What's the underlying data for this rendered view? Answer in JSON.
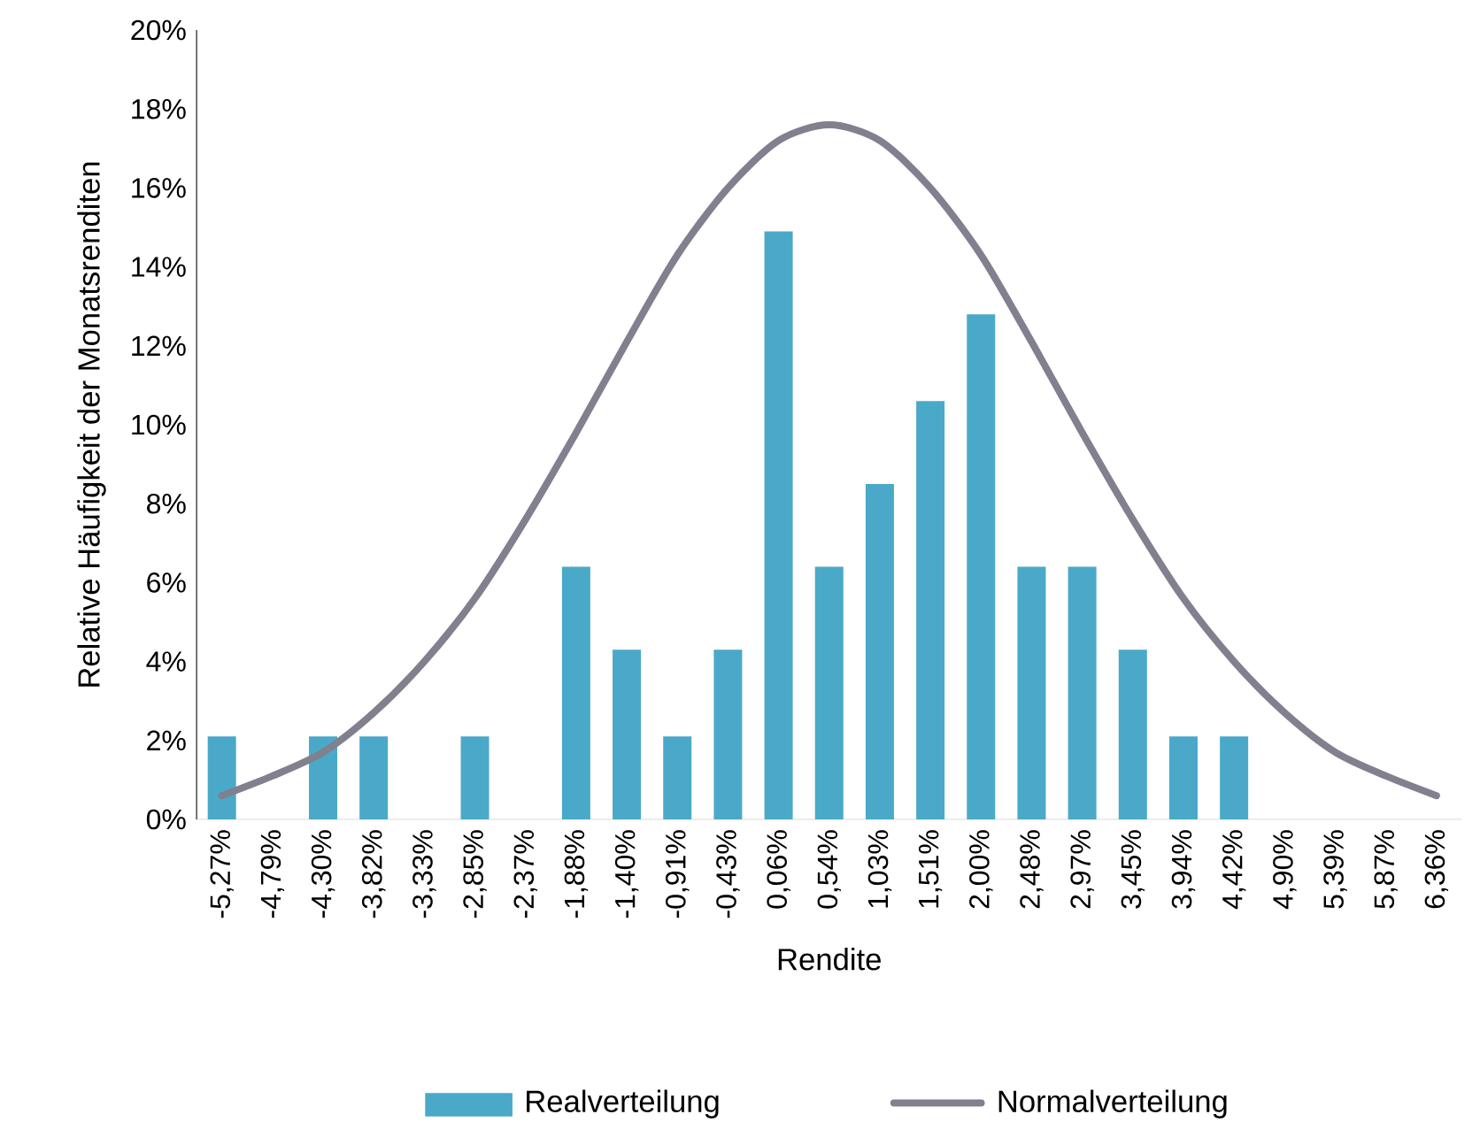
{
  "chart_data": {
    "type": "bar",
    "xlabel": "Rendite",
    "ylabel": "Relative Häufigkeit der Monatsrenditen",
    "categories": [
      "-5,27%",
      "-4,79%",
      "-4,30%",
      "-3,82%",
      "-3,33%",
      "-2,85%",
      "-2,37%",
      "-1,88%",
      "-1,40%",
      "-0,91%",
      "-0,43%",
      "0,06%",
      "0,54%",
      "1,03%",
      "1,51%",
      "2,00%",
      "2,48%",
      "2,97%",
      "3,45%",
      "3,94%",
      "4,42%",
      "4,90%",
      "5,39%",
      "5,87%",
      "6,36%"
    ],
    "series": [
      {
        "name": "Realverteilung",
        "type": "bar",
        "color": "#4aa9c8",
        "values": [
          2.1,
          0,
          2.1,
          2.1,
          0,
          2.1,
          0,
          6.4,
          4.3,
          2.1,
          4.3,
          14.9,
          6.4,
          8.5,
          10.6,
          12.8,
          6.4,
          6.4,
          4.3,
          2.1,
          2.1,
          0,
          0,
          0,
          0
        ]
      },
      {
        "name": "Normalverteilung",
        "type": "line",
        "color": "#80808e",
        "values": [
          0.6,
          1.1,
          1.7,
          2.7,
          4.0,
          5.6,
          7.6,
          9.8,
          12.1,
          14.3,
          16.0,
          17.2,
          17.6,
          17.2,
          16.0,
          14.3,
          12.1,
          9.8,
          7.6,
          5.6,
          4.0,
          2.7,
          1.7,
          1.1,
          0.6
        ]
      }
    ],
    "ylim": [
      0,
      20
    ],
    "yticks": [
      {
        "value": 0,
        "label": "0%"
      },
      {
        "value": 2,
        "label": "2%"
      },
      {
        "value": 4,
        "label": "4%"
      },
      {
        "value": 6,
        "label": "6%"
      },
      {
        "value": 8,
        "label": "8%"
      },
      {
        "value": 10,
        "label": "10%"
      },
      {
        "value": 12,
        "label": "12%"
      },
      {
        "value": 14,
        "label": "14%"
      },
      {
        "value": 16,
        "label": "16%"
      },
      {
        "value": 18,
        "label": "18%"
      },
      {
        "value": 20,
        "label": "20%"
      }
    ],
    "grid": false,
    "legend": "bottom",
    "marker": "none"
  }
}
